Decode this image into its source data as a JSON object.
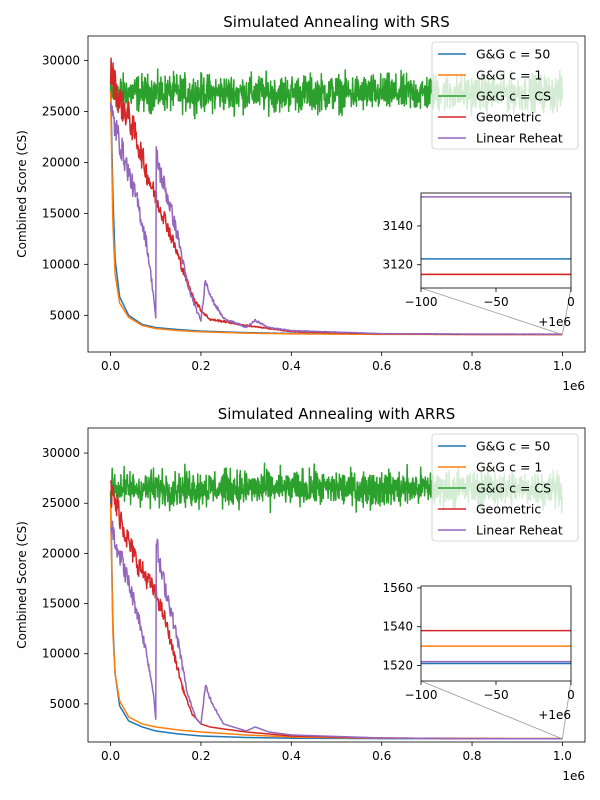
{
  "colors": {
    "G&G c = 50": "#1f77b4",
    "G&G c = 1": "#ff7f0e",
    "G&G c = CS": "#2ca02c",
    "Geometric": "#d62728",
    "Linear Reheat": "#9467bd"
  },
  "chart_data": [
    {
      "type": "line",
      "title": "Simulated Annealing with SRS",
      "xlabel": "",
      "ylabel": "Combined Score (CS)",
      "x_offset_label": "1e6",
      "xlim": [
        -50000,
        1050000
      ],
      "ylim": [
        1400,
        32400
      ],
      "xticks": [
        0,
        200000,
        400000,
        600000,
        800000,
        1000000
      ],
      "xtick_labels": [
        "0.0",
        "0.2",
        "0.4",
        "0.6",
        "0.8",
        "1.0"
      ],
      "yticks": [
        5000,
        10000,
        15000,
        20000,
        25000,
        30000
      ],
      "ytick_labels": [
        "5000",
        "10000",
        "15000",
        "20000",
        "25000",
        "30000"
      ],
      "legend_position": "top-right",
      "grid": false,
      "series": [
        {
          "name": "G&G c = 50",
          "x": [
            0,
            5000,
            10000,
            20000,
            40000,
            70000,
            100000,
            150000,
            200000,
            300000,
            400000,
            600000,
            800000,
            1000000
          ],
          "y": [
            28000,
            17000,
            10500,
            6800,
            5000,
            4100,
            3800,
            3600,
            3450,
            3300,
            3220,
            3150,
            3130,
            3123
          ]
        },
        {
          "name": "G&G c = 1",
          "x": [
            0,
            5000,
            10000,
            20000,
            40000,
            70000,
            100000,
            150000,
            200000,
            300000,
            400000,
            600000,
            800000,
            1000000
          ],
          "y": [
            27000,
            14000,
            9000,
            6200,
            4800,
            4000,
            3700,
            3500,
            3380,
            3250,
            3180,
            3130,
            3118,
            3115
          ]
        },
        {
          "name": "G&G c = CS",
          "x": [
            0,
            1000000
          ],
          "y": [
            26800,
            26800
          ],
          "noise": 1600
        },
        {
          "name": "Geometric",
          "x": [
            0,
            20000,
            40000,
            60000,
            80000,
            100000,
            120000,
            140000,
            160000,
            180000,
            200000,
            220000,
            250000,
            300000,
            400000,
            600000,
            800000,
            1000000
          ],
          "y": [
            29000,
            26000,
            24500,
            22000,
            19000,
            16500,
            14500,
            12000,
            9500,
            7000,
            5500,
            4600,
            4400,
            4000,
            3400,
            3180,
            3130,
            3115
          ]
        },
        {
          "name": "Linear Reheat",
          "x": [
            0,
            20000,
            40000,
            60000,
            80000,
            95000,
            100000,
            101000,
            105000,
            110000,
            130000,
            150000,
            170000,
            190000,
            200000,
            210000,
            225000,
            250000,
            300000,
            320000,
            350000,
            400000,
            600000,
            800000,
            1000000
          ],
          "y": [
            25000,
            22000,
            19000,
            16000,
            12000,
            7000,
            4700,
            20500,
            20000,
            19000,
            16000,
            12500,
            8000,
            5500,
            4500,
            8500,
            6500,
            4700,
            3800,
            4500,
            3800,
            3500,
            3200,
            3160,
            3155
          ]
        }
      ],
      "inset": {
        "xlim": [
          -100,
          0
        ],
        "ylim": [
          3108,
          3157
        ],
        "xticks": [
          -100,
          -50,
          0
        ],
        "xtick_labels": [
          "−100",
          "−50",
          "0"
        ],
        "yticks": [
          3120,
          3140
        ],
        "ytick_labels": [
          "3120",
          "3140"
        ],
        "x_offset_label": "+1e6",
        "series": [
          {
            "name": "G&G c = 50",
            "y": 3123
          },
          {
            "name": "G&G c = 1",
            "y": 3115
          },
          {
            "name": "Geometric",
            "y": 3115
          },
          {
            "name": "Linear Reheat",
            "y": 3155
          }
        ]
      }
    },
    {
      "type": "line",
      "title": "Simulated Annealing with ARRS",
      "xlabel": "",
      "ylabel": "Combined Score (CS)",
      "x_offset_label": "1e6",
      "xlim": [
        -50000,
        1050000
      ],
      "ylim": [
        1200,
        32500
      ],
      "xticks": [
        0,
        200000,
        400000,
        600000,
        800000,
        1000000
      ],
      "xtick_labels": [
        "0.0",
        "0.2",
        "0.4",
        "0.6",
        "0.8",
        "1.0"
      ],
      "yticks": [
        5000,
        10000,
        15000,
        20000,
        25000,
        30000
      ],
      "ytick_labels": [
        "5000",
        "10000",
        "15000",
        "20000",
        "25000",
        "30000"
      ],
      "legend_position": "top-right",
      "grid": false,
      "series": [
        {
          "name": "G&G c = 50",
          "x": [
            0,
            5000,
            10000,
            20000,
            40000,
            70000,
            100000,
            150000,
            200000,
            300000,
            400000,
            600000,
            800000,
            1000000
          ],
          "y": [
            26000,
            13000,
            8000,
            4800,
            3300,
            2700,
            2300,
            2000,
            1800,
            1650,
            1580,
            1540,
            1525,
            1521
          ]
        },
        {
          "name": "G&G c = 1",
          "x": [
            0,
            5000,
            10000,
            20000,
            40000,
            70000,
            100000,
            150000,
            200000,
            300000,
            400000,
            600000,
            800000,
            1000000
          ],
          "y": [
            25000,
            12000,
            8000,
            5300,
            3700,
            3000,
            2700,
            2400,
            2200,
            1900,
            1700,
            1580,
            1545,
            1530
          ]
        },
        {
          "name": "G&G c = CS",
          "x": [
            0,
            1000000
          ],
          "y": [
            26500,
            26500
          ],
          "noise": 1600
        },
        {
          "name": "Geometric",
          "x": [
            0,
            20000,
            40000,
            60000,
            80000,
            100000,
            120000,
            140000,
            160000,
            180000,
            200000,
            220000,
            250000,
            300000,
            400000,
            600000,
            800000,
            1000000
          ],
          "y": [
            26000,
            24000,
            21000,
            19000,
            17500,
            16000,
            13500,
            10000,
            6500,
            4000,
            3000,
            2700,
            2500,
            2200,
            1800,
            1600,
            1545,
            1538
          ]
        },
        {
          "name": "Linear Reheat",
          "x": [
            0,
            20000,
            40000,
            60000,
            80000,
            95000,
            100000,
            101000,
            105000,
            110000,
            130000,
            150000,
            170000,
            190000,
            200000,
            210000,
            225000,
            250000,
            300000,
            320000,
            350000,
            400000,
            600000,
            800000,
            1000000
          ],
          "y": [
            23000,
            20000,
            17000,
            14000,
            10000,
            6000,
            3500,
            21000,
            20000,
            18500,
            15000,
            11000,
            6000,
            3500,
            3000,
            6800,
            5000,
            3000,
            2300,
            2700,
            2200,
            1900,
            1600,
            1530,
            1522
          ]
        }
      ],
      "inset": {
        "xlim": [
          -100,
          0
        ],
        "ylim": [
          1512,
          1561
        ],
        "xticks": [
          -100,
          -50,
          0
        ],
        "xtick_labels": [
          "−100",
          "−50",
          "0"
        ],
        "yticks": [
          1520,
          1540,
          1560
        ],
        "ytick_labels": [
          "1520",
          "1540",
          "1560"
        ],
        "x_offset_label": "+1e6",
        "series": [
          {
            "name": "G&G c = 50",
            "y": 1521
          },
          {
            "name": "G&G c = 1",
            "y": 1530
          },
          {
            "name": "Geometric",
            "y": 1538
          },
          {
            "name": "Linear Reheat",
            "y": 1522
          }
        ]
      }
    }
  ]
}
